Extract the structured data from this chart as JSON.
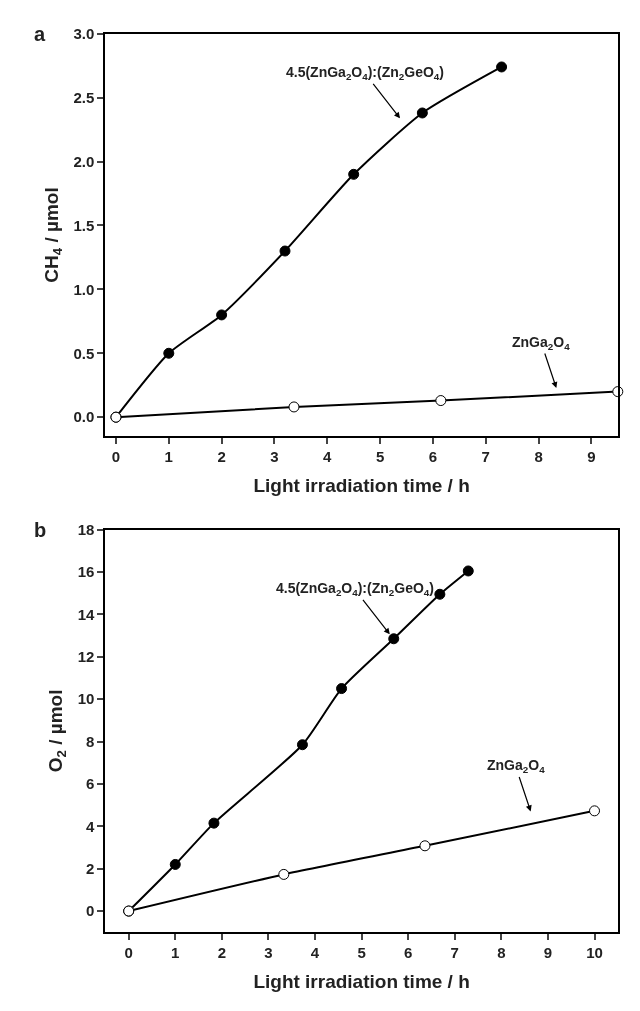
{
  "chart_data": [
    {
      "type": "line",
      "title": "a",
      "xlabel": "Light irradiation time / h",
      "ylabel": "CH$_{4}$ / µmol",
      "marker": "circle",
      "line_style": "solid",
      "series": [
        {
          "color": "#000000",
          "x": [
            0,
            1,
            2,
            3.2,
            4.5,
            5.8,
            7.3
          ],
          "values": [
            0,
            0.5,
            0.8,
            1.3,
            1.9,
            2.38,
            2.74
          ]
        },
        {
          "color": "#ffffff",
          "x": [
            0,
            3.37,
            6.15,
            9.5
          ],
          "values": [
            0,
            0.08,
            0.13,
            0.2
          ]
        }
      ],
      "xlim": [
        -0.2,
        9.5
      ],
      "ylim": [
        -0.15,
        3.0
      ],
      "xticks": [
        0,
        1,
        2,
        3,
        4,
        5,
        6,
        7,
        8,
        9
      ],
      "yticks": [
        {
          "value": 0,
          "label": "0.0"
        },
        {
          "value": 0.5,
          "label": "0.5"
        },
        {
          "value": 1,
          "label": "1.0"
        },
        {
          "value": 1.5,
          "label": "1.5"
        },
        {
          "value": 2,
          "label": "2.0"
        },
        {
          "value": 2.5,
          "label": "2.5"
        },
        {
          "value": 3,
          "label": "3.0"
        }
      ],
      "annotations": [
        "4.5(ZnGa$_{2}$O$_{4}$):(Zn$_{2}$GeO$_{4}$)",
        "ZnGa$_{2}$O$_{4}$"
      ]
    },
    {
      "type": "line",
      "title": "b",
      "xlabel": "Light irradiation time / h",
      "ylabel": "O$_{2}$ / µmol",
      "marker": "circle",
      "line_style": "solid",
      "series": [
        {
          "color": "#000000",
          "x": [
            0,
            1,
            1.83,
            3.73,
            4.57,
            5.69,
            6.68,
            7.29
          ],
          "values": [
            0,
            2.2,
            4.15,
            7.85,
            10.5,
            12.85,
            14.95,
            16.05
          ]
        },
        {
          "color": "#ffffff",
          "x": [
            0,
            3.33,
            6.36,
            10
          ],
          "values": [
            0,
            1.73,
            3.08,
            4.73
          ]
        }
      ],
      "xlim": [
        -0.5,
        10.5
      ],
      "ylim": [
        -1,
        18
      ],
      "xticks": [
        0,
        1,
        2,
        3,
        4,
        5,
        6,
        7,
        8,
        9,
        10
      ],
      "yticks": [
        0,
        2,
        4,
        6,
        8,
        10,
        12,
        14,
        16,
        18
      ],
      "annotations": [
        "4.5(ZnGa$_{2}$O$_{4}$):(Zn$_{2}$GeO$_{4}$)",
        "ZnGa$_{2}$O$_{4}$"
      ]
    }
  ]
}
